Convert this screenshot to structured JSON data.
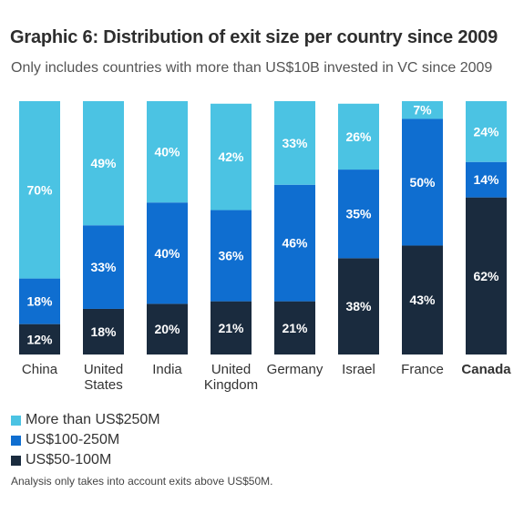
{
  "title": "Graphic 6: Distribution of exit size per country since 2009",
  "subtitle": "Only includes countries with more than US$10B invested in VC since 2009",
  "footnote": "Analysis only takes into account exits above US$50M.",
  "colors": {
    "large": "#4bc3e3",
    "mid": "#0f6ed0",
    "small": "#1a2b3e"
  },
  "chart_data": {
    "type": "bar",
    "stacked": true,
    "normalized_percent": true,
    "title": "Graphic 6: Distribution of exit size per country since 2009",
    "categories": [
      "China",
      "United States",
      "India",
      "United Kingdom",
      "Germany",
      "Israel",
      "France",
      "Canada"
    ],
    "highlighted_category": "Canada",
    "ylim": [
      0,
      100
    ],
    "legend_position": "bottom-left",
    "series": [
      {
        "name": "US$50-100M",
        "color": "#1a2b3e",
        "values": [
          12,
          18,
          20,
          21,
          21,
          38,
          43,
          62
        ],
        "labels": [
          "12%",
          "18%",
          "20%",
          "21%",
          "21%",
          "38%",
          "43%",
          "62%"
        ]
      },
      {
        "name": "US$100-250M",
        "color": "#0f6ed0",
        "values": [
          18,
          33,
          40,
          36,
          46,
          35,
          50,
          14
        ],
        "labels": [
          "18%",
          "33%",
          "40%",
          "36%",
          "46%",
          "35%",
          "50%",
          "14%"
        ]
      },
      {
        "name": "More than US$250M",
        "color": "#4bc3e3",
        "values": [
          70,
          49,
          40,
          42,
          33,
          26,
          7,
          24
        ],
        "labels": [
          "70%",
          "49%",
          "40%",
          "42%",
          "33%",
          "26%",
          "7%",
          "24%"
        ]
      }
    ]
  },
  "legend": [
    {
      "label": "More than US$250M",
      "color": "#4bc3e3"
    },
    {
      "label": "US$100-250M",
      "color": "#0f6ed0"
    },
    {
      "label": "US$50-100M",
      "color": "#1a2b3e"
    }
  ]
}
